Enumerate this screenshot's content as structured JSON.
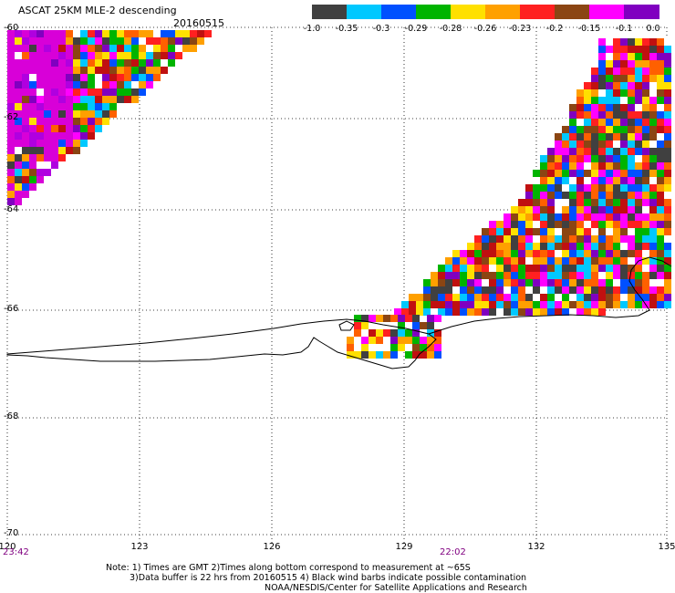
{
  "header": {
    "title": "ASCAT 25KM MLE-2 descending",
    "date": "20160515"
  },
  "colorbar": {
    "colors": [
      "#404040",
      "#00c8ff",
      "#0050ff",
      "#00b400",
      "#ffe000",
      "#ffa000",
      "#ff2020",
      "#8b4513",
      "#ff00ff",
      "#8000c0"
    ],
    "labels": [
      "-1.0",
      "-0.35",
      "-0.3",
      "-0.29",
      "-0.28",
      "-0.26",
      "-0.23",
      "-0.2",
      "-0.15",
      "-0.1",
      "0.0"
    ]
  },
  "axes": {
    "lat_labels": [
      "-60",
      "-62",
      "-64",
      "-66",
      "-68",
      "-70"
    ],
    "lon_labels": [
      "120",
      "123",
      "126",
      "129",
      "132",
      "135"
    ],
    "time_labels": [
      "23:42",
      "22:02"
    ]
  },
  "notes": [
    "Note: 1) Times are GMT 2)Times along bottom correspond to measurement at ~65S",
    "3)Data buffer is 22 hrs from 20160515 4) Black wind barbs indicate possible contamination",
    "NOAA/NESDIS/Center for Satellite Applications and Research"
  ],
  "map": {
    "lat_range": [
      -70,
      -60
    ],
    "lon_range": [
      120,
      135
    ],
    "grid": "dotted",
    "contents": "ASCAT MLE-2 swath cells in two swaths (upper-left corner and lower-right) with the Antarctic coastline in black"
  }
}
